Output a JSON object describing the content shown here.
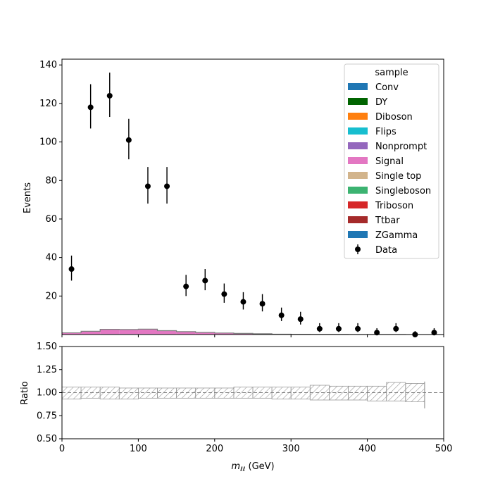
{
  "chart_data": [
    {
      "type": "bar",
      "panel": "main",
      "ylabel": "Events",
      "xlim": [
        0,
        500
      ],
      "ylim": [
        0,
        143
      ],
      "yticks": [
        20,
        40,
        60,
        80,
        100,
        120,
        140
      ],
      "bin_edges": [
        0,
        25,
        50,
        75,
        100,
        125,
        150,
        175,
        200,
        225,
        250,
        275,
        300,
        325,
        350,
        375,
        400,
        425,
        450,
        475,
        500
      ],
      "stack": [
        {
          "name": "Conv",
          "color": "#1f77b4",
          "values": [
            0,
            0,
            0,
            0,
            0,
            0,
            0,
            0,
            0,
            0,
            0,
            0,
            0,
            0,
            0,
            0,
            0,
            0,
            0,
            0
          ]
        },
        {
          "name": "DY",
          "color": "#006400",
          "values": [
            0,
            0,
            0,
            0,
            0,
            0,
            0,
            0,
            0,
            0,
            0,
            0,
            0,
            0,
            0,
            0,
            0,
            0,
            0,
            0
          ]
        },
        {
          "name": "Diboson",
          "color": "#ff7f0e",
          "values": [
            0,
            0,
            0,
            0,
            0,
            0,
            0,
            0,
            0,
            0,
            0,
            0,
            0,
            0,
            0,
            0,
            0,
            0,
            0,
            0
          ]
        },
        {
          "name": "Flips",
          "color": "#17becf",
          "values": [
            0,
            0,
            0,
            0,
            0,
            0,
            0,
            0,
            0,
            0,
            0,
            0,
            0,
            0,
            0,
            0,
            0,
            0,
            0,
            0
          ]
        },
        {
          "name": "Nonprompt",
          "color": "#9467bd",
          "values": [
            0.1,
            0.2,
            0.3,
            0.3,
            0.3,
            0.2,
            0.2,
            0.1,
            0.1,
            0.1,
            0,
            0,
            0,
            0,
            0,
            0,
            0,
            0,
            0,
            0
          ]
        },
        {
          "name": "Signal",
          "color": "#e377c2",
          "values": [
            0.8,
            1.5,
            2.4,
            2.3,
            2.5,
            1.8,
            1.3,
            1.0,
            0.7,
            0.5,
            0.4,
            0.2,
            0.15,
            0.1,
            0.08,
            0.06,
            0.05,
            0.04,
            0.03,
            0.02
          ]
        },
        {
          "name": "Single top",
          "color": "#d2b48c",
          "values": [
            0,
            0,
            0,
            0,
            0,
            0,
            0,
            0,
            0,
            0,
            0,
            0,
            0,
            0,
            0,
            0,
            0,
            0,
            0,
            0
          ]
        },
        {
          "name": "Singleboson",
          "color": "#3cb371",
          "values": [
            0,
            0,
            0,
            0,
            0,
            0,
            0,
            0,
            0,
            0,
            0,
            0,
            0,
            0,
            0,
            0,
            0,
            0,
            0,
            0
          ]
        },
        {
          "name": "Triboson",
          "color": "#d62728",
          "values": [
            0,
            0,
            0,
            0,
            0,
            0,
            0,
            0,
            0,
            0,
            0,
            0,
            0,
            0,
            0,
            0,
            0,
            0,
            0,
            0
          ]
        },
        {
          "name": "Ttbar",
          "color": "#a52a2a",
          "values": [
            0,
            0,
            0,
            0,
            0,
            0,
            0,
            0,
            0,
            0,
            0,
            0,
            0,
            0,
            0,
            0,
            0,
            0,
            0,
            0
          ]
        },
        {
          "name": "ZGamma",
          "color": "#1f77b4",
          "values": [
            0,
            0,
            0,
            0,
            0,
            0,
            0,
            0,
            0,
            0,
            0,
            0,
            0,
            0,
            0,
            0,
            0,
            0,
            0,
            0
          ]
        }
      ],
      "data": {
        "name": "Data",
        "color": "#000000",
        "x": [
          12.5,
          37.5,
          62.5,
          87.5,
          112.5,
          137.5,
          162.5,
          187.5,
          212.5,
          237.5,
          262.5,
          287.5,
          312.5,
          337.5,
          362.5,
          387.5,
          412.5,
          437.5,
          462.5,
          487.5
        ],
        "y": [
          34,
          118,
          124,
          101,
          77,
          77,
          25,
          28,
          21,
          17,
          16,
          10,
          8,
          3,
          3,
          3,
          1,
          3,
          0,
          1
        ],
        "yerr_low": [
          6,
          11,
          11,
          10,
          9,
          9,
          5,
          5,
          4.5,
          4,
          4,
          3,
          2.8,
          1.7,
          1.7,
          1.7,
          1,
          1.7,
          0,
          1
        ],
        "yerr_high": [
          7,
          12,
          12,
          11,
          10,
          10,
          6,
          6,
          5.5,
          5,
          5,
          4,
          3.8,
          2.9,
          2.9,
          2.9,
          2.3,
          2.9,
          1.8,
          2.3
        ]
      },
      "legend": {
        "title": "sample",
        "placement": "upper right"
      }
    },
    {
      "type": "area",
      "panel": "ratio",
      "xlabel_main": "m",
      "xlabel_sub": "ℓℓ",
      "xlabel_unit": "(GeV)",
      "ylabel": "Ratio",
      "xlim": [
        0,
        500
      ],
      "ylim": [
        0.5,
        1.5
      ],
      "xticks": [
        0,
        100,
        200,
        300,
        400,
        500
      ],
      "yticks": [
        "0.50",
        "0.75",
        "1.00",
        "1.25",
        "1.50"
      ],
      "reference_line": 1.0,
      "uncertainty_band": {
        "bin_edges": [
          0,
          25,
          50,
          75,
          100,
          125,
          150,
          175,
          200,
          225,
          250,
          275,
          300,
          325,
          350,
          375,
          400,
          425,
          450,
          475
        ],
        "low": [
          0.93,
          0.94,
          0.93,
          0.93,
          0.94,
          0.94,
          0.94,
          0.94,
          0.94,
          0.94,
          0.94,
          0.93,
          0.93,
          0.92,
          0.92,
          0.92,
          0.91,
          0.91,
          0.9
        ],
        "high": [
          1.06,
          1.06,
          1.06,
          1.05,
          1.05,
          1.05,
          1.05,
          1.05,
          1.05,
          1.06,
          1.06,
          1.06,
          1.06,
          1.08,
          1.07,
          1.07,
          1.07,
          1.11,
          1.1
        ],
        "last_bin_extent": [
          0.83,
          1.12
        ]
      }
    }
  ]
}
